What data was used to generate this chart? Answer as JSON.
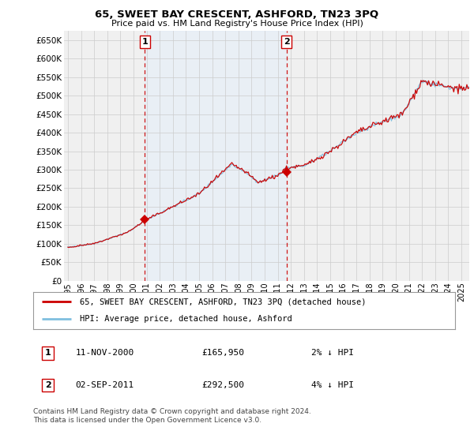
{
  "title": "65, SWEET BAY CRESCENT, ASHFORD, TN23 3PQ",
  "subtitle": "Price paid vs. HM Land Registry's House Price Index (HPI)",
  "ylabel_ticks": [
    "£0",
    "£50K",
    "£100K",
    "£150K",
    "£200K",
    "£250K",
    "£300K",
    "£350K",
    "£400K",
    "£450K",
    "£500K",
    "£550K",
    "£600K",
    "£650K"
  ],
  "ylim": [
    0,
    675000
  ],
  "xlim_start": 1994.7,
  "xlim_end": 2025.6,
  "sale1_x": 2000.87,
  "sale1_y": 165950,
  "sale2_x": 2011.67,
  "sale2_y": 292500,
  "sale1_label": "1",
  "sale2_label": "2",
  "legend_line1": "65, SWEET BAY CRESCENT, ASHFORD, TN23 3PQ (detached house)",
  "legend_line2": "HPI: Average price, detached house, Ashford",
  "annotation1_date": "11-NOV-2000",
  "annotation1_price": "£165,950",
  "annotation1_hpi": "2% ↓ HPI",
  "annotation2_date": "02-SEP-2011",
  "annotation2_price": "£292,500",
  "annotation2_hpi": "4% ↓ HPI",
  "footer": "Contains HM Land Registry data © Crown copyright and database right 2024.\nThis data is licensed under the Open Government Licence v3.0.",
  "hpi_color": "#7fbfdf",
  "price_color": "#cc0000",
  "vline_color": "#cc0000",
  "grid_color": "#cccccc",
  "background_color": "#ffffff",
  "plot_bg_color": "#f0f0f0",
  "shade_color": "#ddeeff"
}
